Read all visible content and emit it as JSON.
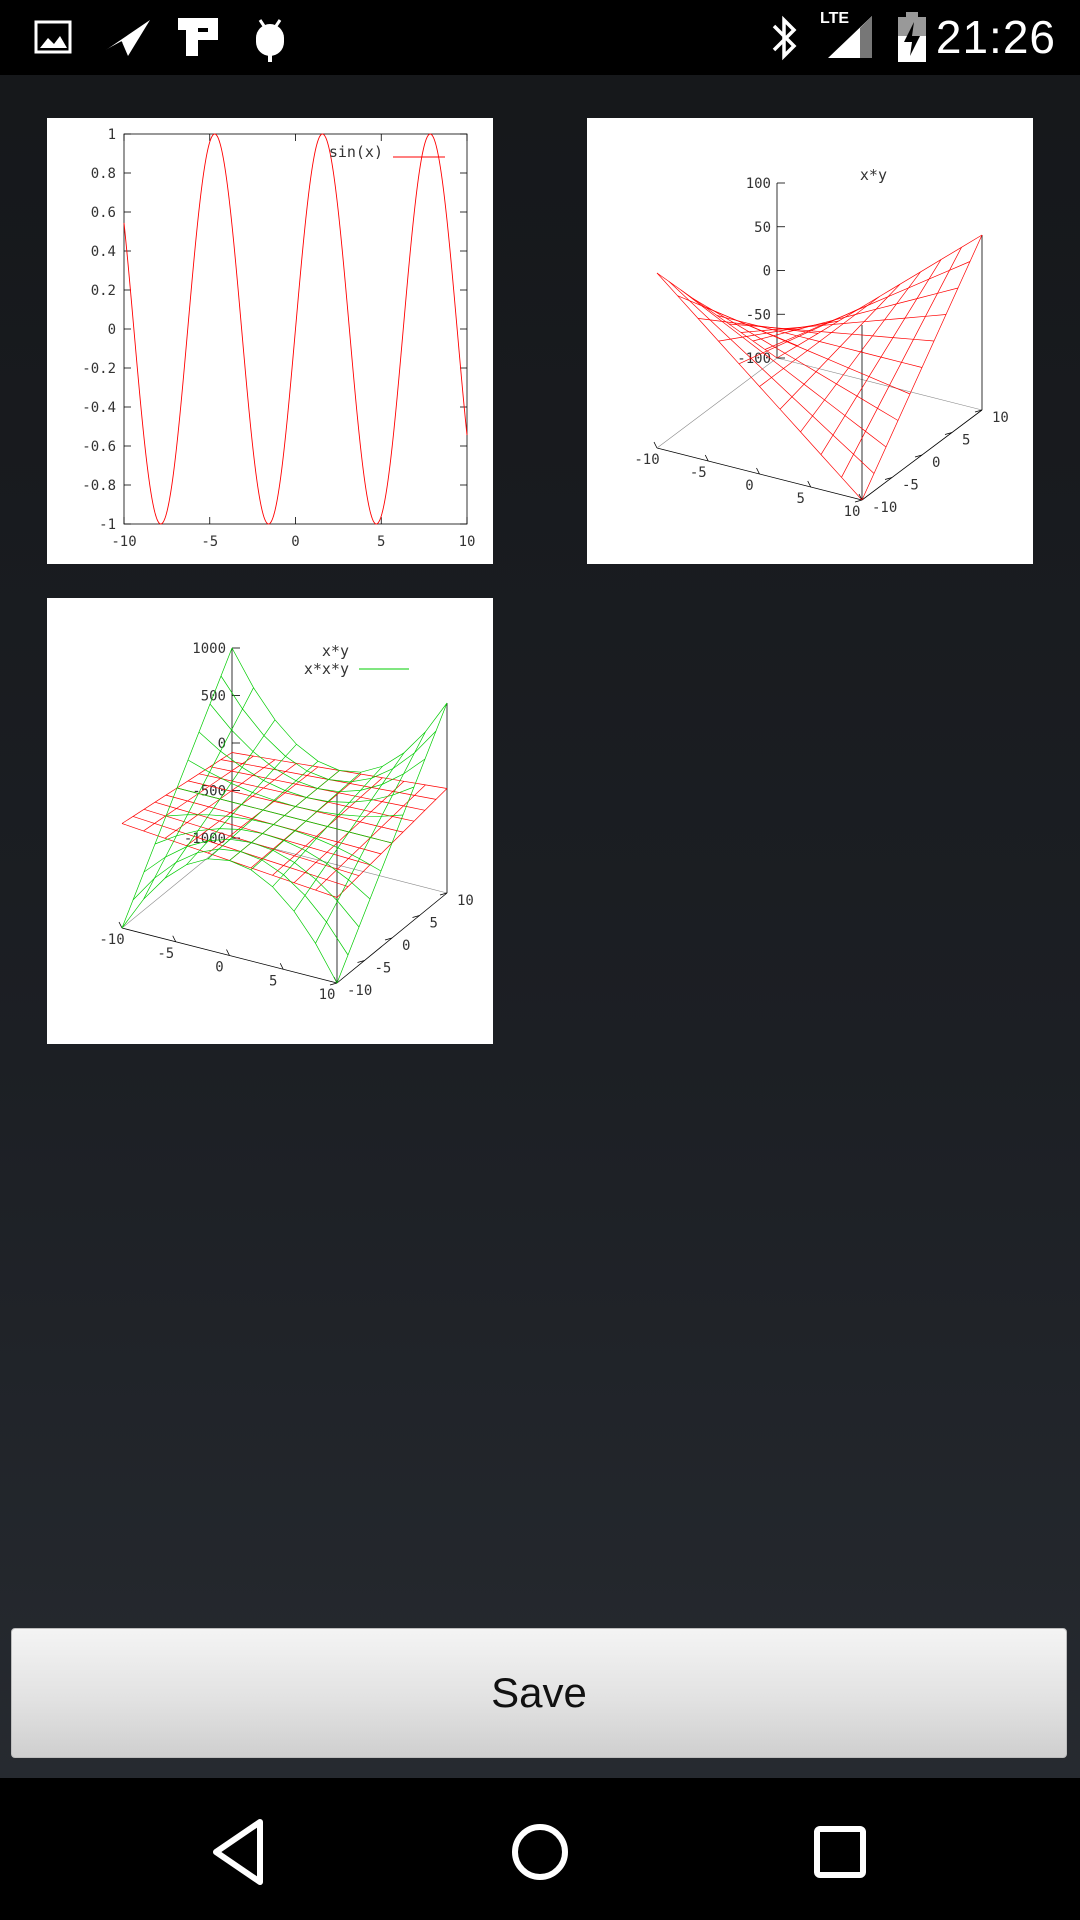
{
  "status_bar": {
    "time": "21:26",
    "network_label": "LTE",
    "left_icons": [
      "gallery-icon",
      "paper-plane-icon",
      "app-icon",
      "android-debug-icon"
    ],
    "right_icons": [
      "bluetooth-icon",
      "signal-icon",
      "battery-charging-icon"
    ]
  },
  "plots": [
    {
      "name": "sin-plot",
      "chart_data": {
        "type": "line",
        "title": "",
        "series": [
          {
            "name": "sin(x)",
            "function": "sin(x)",
            "color": "#ff0000"
          }
        ],
        "xlim": [
          -10,
          10
        ],
        "ylim": [
          -1,
          1
        ],
        "x_ticks": [
          "-10",
          "-5",
          "0",
          "5",
          "10"
        ],
        "y_ticks": [
          "1",
          "0.8",
          "0.6",
          "0.4",
          "0.2",
          "0",
          "-0.2",
          "-0.4",
          "-0.6",
          "-0.8",
          "-1"
        ],
        "legend": "top-right",
        "grid": false
      }
    },
    {
      "name": "xy-surface-plot",
      "chart_data": {
        "type": "surface",
        "series": [
          {
            "name": "x*y",
            "function": "x*y",
            "color": "#ff0000"
          }
        ],
        "xlim": [
          -10,
          10
        ],
        "ylim": [
          -10,
          10
        ],
        "zlim": [
          -100,
          100
        ],
        "z_ticks": [
          "100",
          "50",
          "0",
          "-50",
          "-100"
        ],
        "x_ticks": [
          "-10",
          "-5",
          "0",
          "5",
          "10"
        ],
        "y_ticks": [
          "-10",
          "-5",
          "0",
          "5",
          "10"
        ],
        "legend": "top-center",
        "grid": false
      }
    },
    {
      "name": "combined-surface-plot",
      "chart_data": {
        "type": "surface",
        "series": [
          {
            "name": "x*y",
            "function": "x*y",
            "color": "#ff0000"
          },
          {
            "name": "x*x*y",
            "function": "x*x*y",
            "color": "#00cc00"
          }
        ],
        "xlim": [
          -10,
          10
        ],
        "ylim": [
          -10,
          10
        ],
        "zlim": [
          -1000,
          1000
        ],
        "z_ticks": [
          "1000",
          "500",
          "0",
          "-500",
          "-1000"
        ],
        "x_ticks": [
          "-10",
          "-5",
          "0",
          "5",
          "10"
        ],
        "y_ticks": [
          "-10",
          "-5",
          "0",
          "5",
          "10"
        ],
        "legend": "top-right",
        "grid": false
      }
    }
  ],
  "save_button": {
    "label": "Save"
  },
  "nav": {
    "back": "back-icon",
    "home": "home-icon",
    "recents": "recents-icon"
  }
}
